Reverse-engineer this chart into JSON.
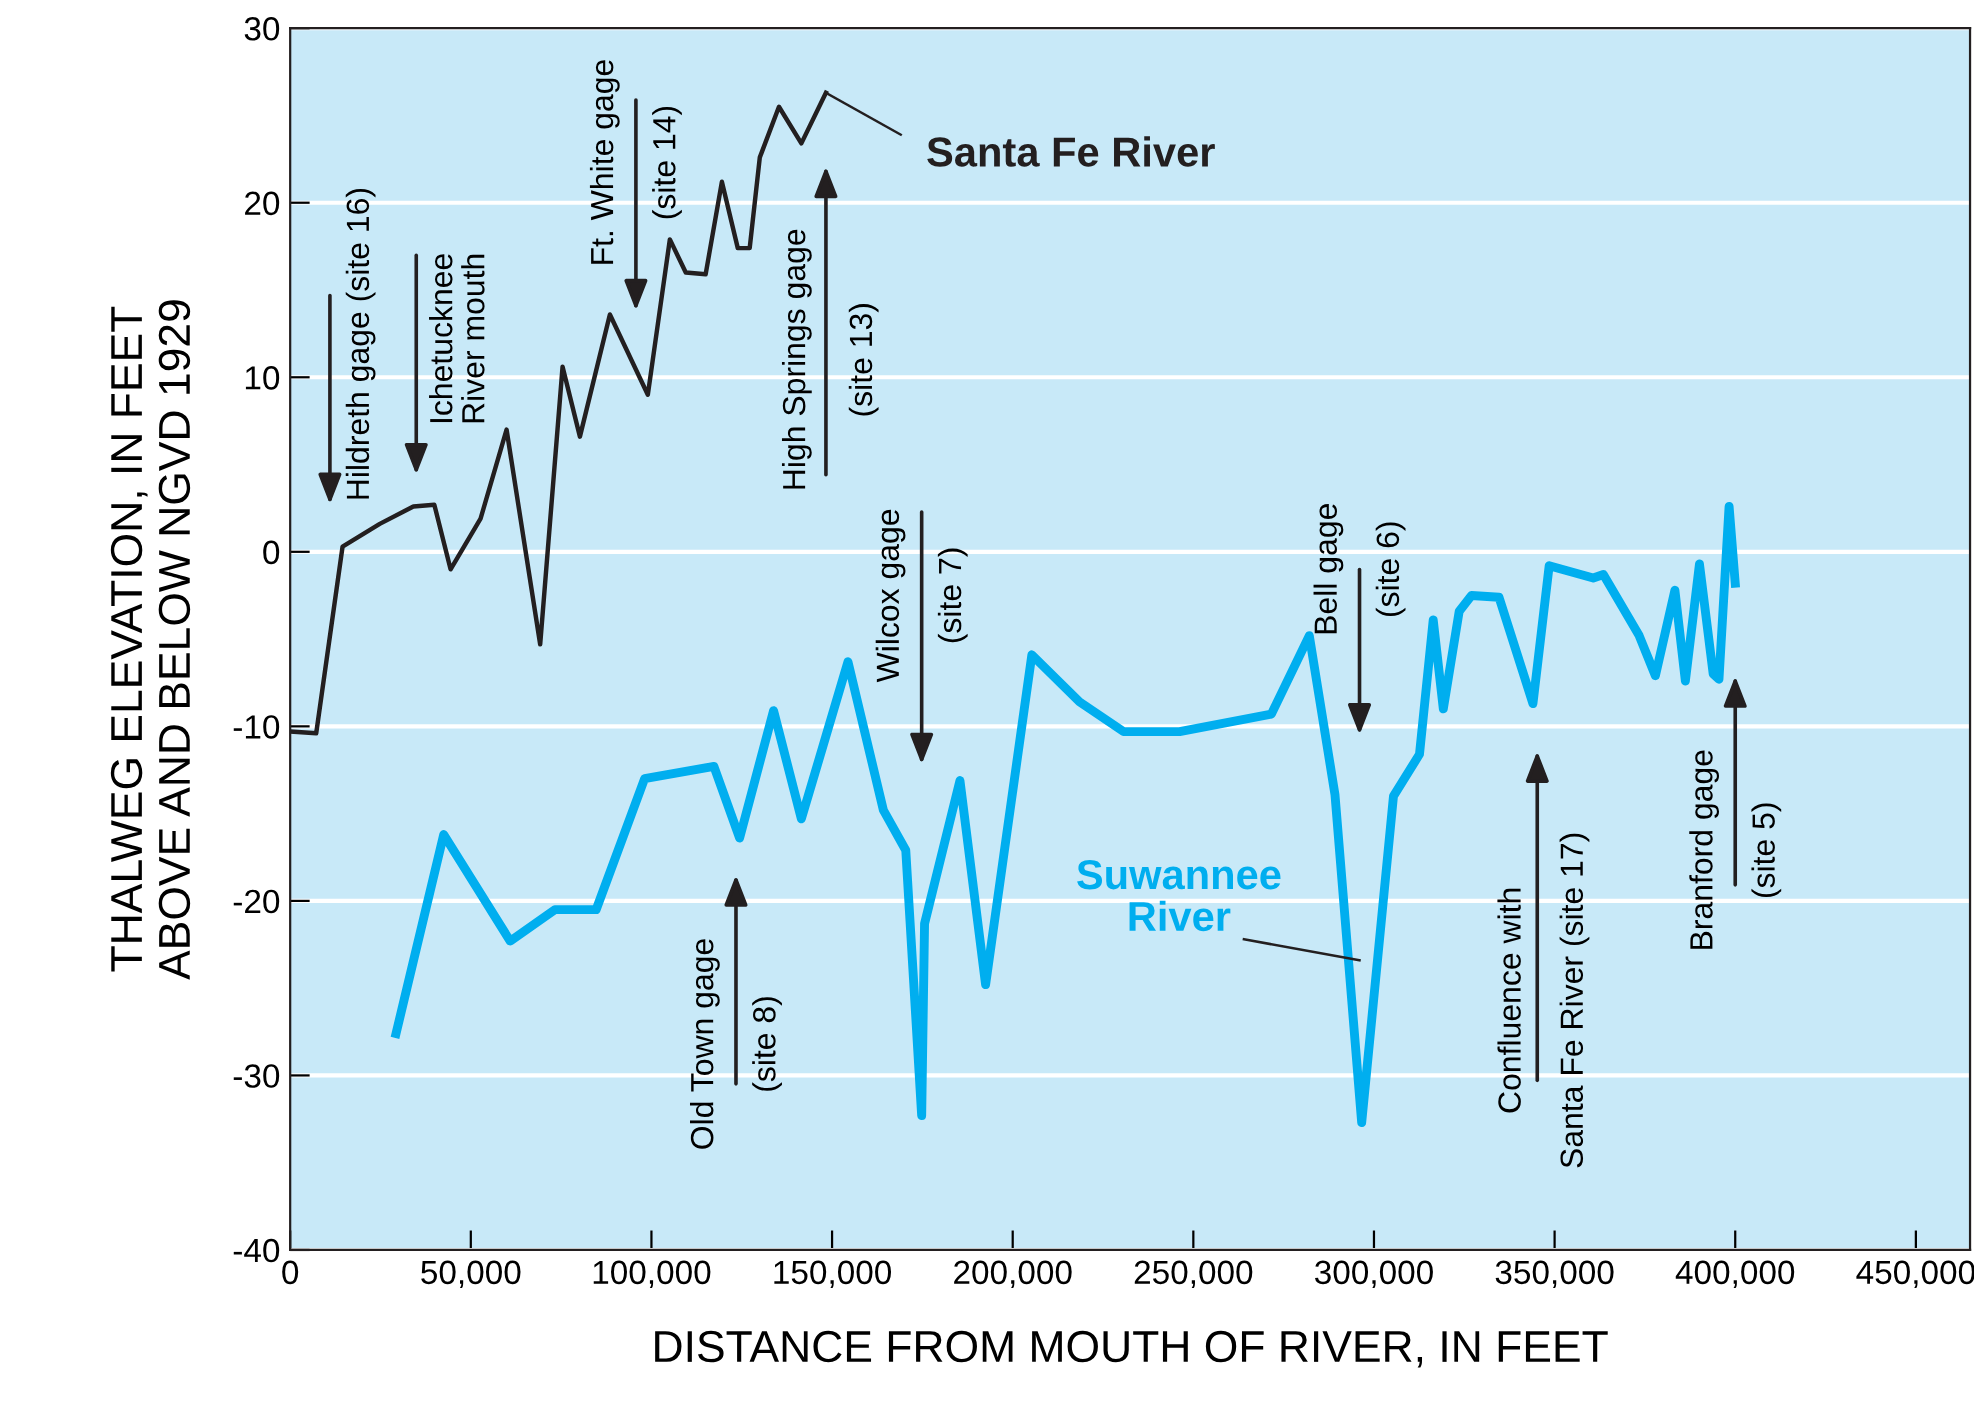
{
  "chart_data": {
    "type": "line",
    "xlabel": "DISTANCE FROM MOUTH OF RIVER, IN FEET",
    "ylabel": "THALWEG ELEVATION, IN FEET\nABOVE AND BELOW NGVD 1929",
    "xlim": [
      0,
      465000
    ],
    "ylim": [
      -40,
      30
    ],
    "xticks": [
      0,
      {
        "value": 50000,
        "label": "50,000"
      },
      {
        "value": 100000,
        "label": "100,000"
      },
      {
        "value": 150000,
        "label": "150,000"
      },
      {
        "value": 200000,
        "label": "200,000"
      },
      {
        "value": 250000,
        "label": "250,000"
      },
      {
        "value": 300000,
        "label": "300,000"
      },
      {
        "value": 350000,
        "label": "350,000"
      },
      {
        "value": 400000,
        "label": "400,000"
      },
      {
        "value": 450000,
        "label": "450,000"
      }
    ],
    "yticks": [
      {
        "value": -40,
        "label": "-40"
      },
      {
        "value": -30,
        "label": "-30"
      },
      {
        "value": -20,
        "label": "-20"
      },
      {
        "value": -10,
        "label": "-10"
      },
      0,
      10,
      20,
      30
    ],
    "grid": "y",
    "legend": false,
    "marker": "none",
    "line_style": "solid",
    "series": [
      {
        "name": "Santa Fe River",
        "color": "#231f20",
        "x": [
          0,
          7200,
          14500,
          24800,
          34100,
          39900,
          44400,
          52700,
          59900,
          69200,
          75400,
          80200,
          88500,
          99000,
          105100,
          109500,
          115000,
          119500,
          123900,
          127200,
          130000,
          135300,
          141500,
          148300
        ],
        "values": [
          -10.3,
          -10.4,
          0.3,
          1.6,
          2.6,
          2.7,
          -1.0,
          1.9,
          7.0,
          -5.3,
          10.6,
          6.6,
          13.6,
          9.0,
          17.9,
          16.0,
          15.9,
          21.2,
          17.4,
          17.4,
          22.6,
          25.5,
          23.4,
          26.3
        ]
      },
      {
        "name": "Suwannee\nRiver",
        "color": "#00aeef",
        "x": [
          29300,
          42500,
          60900,
          73300,
          84700,
          98100,
          117300,
          124400,
          133800,
          141500,
          154400,
          164200,
          170400,
          174800,
          175600,
          185400,
          192500,
          205300,
          218500,
          230700,
          246200,
          271600,
          282100,
          289200,
          296600,
          305400,
          312600,
          316400,
          319200,
          323600,
          327000,
          334600,
          344000,
          348500,
          360700,
          363500,
          373400,
          377900,
          383300,
          386200,
          390100,
          393900,
          395500,
          398300,
          400000
        ],
        "values": [
          -27.6,
          -16.2,
          -22.3,
          -20.5,
          -20.5,
          -13.0,
          -12.3,
          -16.4,
          -9.1,
          -15.3,
          -6.3,
          -14.8,
          -17.1,
          -32.3,
          -21.3,
          -13.1,
          -24.8,
          -5.9,
          -8.6,
          -10.3,
          -10.3,
          -9.3,
          -4.8,
          -13.9,
          -32.7,
          -14.0,
          -11.6,
          -3.9,
          -9.0,
          -3.4,
          -2.5,
          -2.6,
          -8.7,
          -0.8,
          -1.5,
          -1.3,
          -4.8,
          -7.1,
          -2.2,
          -7.4,
          -0.7,
          -7.0,
          -7.3,
          2.6,
          -1.8
        ]
      }
    ],
    "annotations": [
      "Hildreth gage (site 16)",
      "Ichetucknee\nRiver mouth",
      "Ft. White gage\n(site 14)",
      "High Springs gage\n(site 13)",
      "Wilcox gage\n(site 7)",
      "Old Town gage\n(site 8)",
      "Bell gage\n(site 6)",
      "Confluence with\nSanta Fe River (site 17)",
      "Branford gage\n(site 5)"
    ]
  }
}
